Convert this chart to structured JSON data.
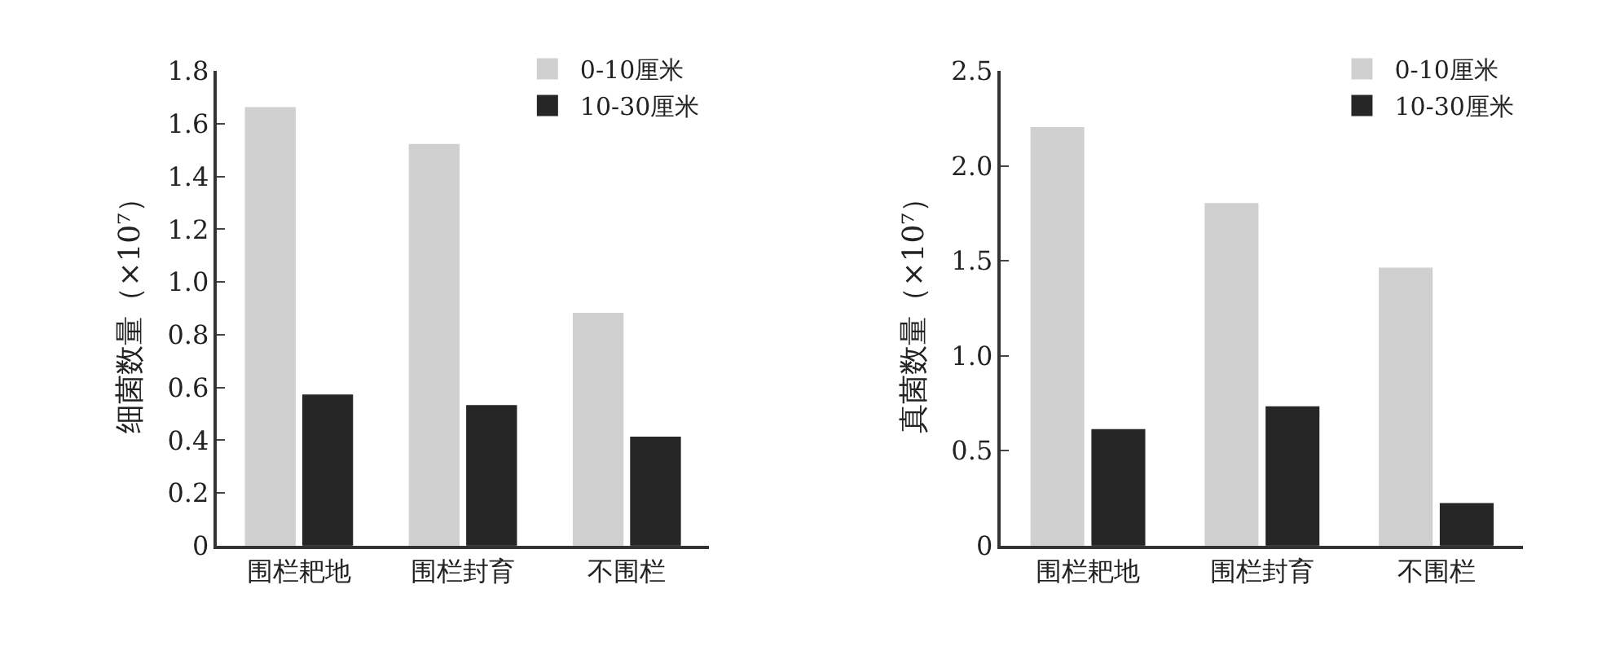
{
  "chart_data": [
    {
      "type": "bar",
      "ylabel": "细菌数量（×10⁷）",
      "categories": [
        "围栏耙地",
        "围栏封育",
        "不围栏"
      ],
      "series": [
        {
          "name": "0-10厘米",
          "color": "#d0d0d0",
          "values": [
            1.66,
            1.52,
            0.88
          ]
        },
        {
          "name": "10-30厘米",
          "color": "#262626",
          "values": [
            0.57,
            0.53,
            0.41
          ]
        }
      ],
      "ylim": [
        0,
        1.8
      ],
      "yticks": [
        0,
        {
          "value": 0.2,
          "label": "0.2"
        },
        {
          "value": 0.4,
          "label": "0.4"
        },
        {
          "value": 0.6,
          "label": "0.6"
        },
        {
          "value": 0.8,
          "label": "0.8"
        },
        {
          "value": 1.0,
          "label": "1.0"
        },
        {
          "value": 1.2,
          "label": "1.2"
        },
        {
          "value": 1.4,
          "label": "1.4"
        },
        {
          "value": 1.6,
          "label": "1.6"
        },
        {
          "value": 1.8,
          "label": "1.8"
        }
      ],
      "grid": false,
      "legend": "top right"
    },
    {
      "type": "bar",
      "ylabel": "真菌数量（×10⁷）",
      "categories": [
        "围栏耙地",
        "围栏封育",
        "不围栏"
      ],
      "series": [
        {
          "name": "0-10厘米",
          "color": "#d0d0d0",
          "values": [
            2.2,
            1.8,
            1.46
          ]
        },
        {
          "name": "10-30厘米",
          "color": "#262626",
          "values": [
            0.61,
            0.73,
            0.22
          ]
        }
      ],
      "ylim": [
        0,
        2.5
      ],
      "yticks": [
        0,
        {
          "value": 0.5,
          "label": "0.5"
        },
        {
          "value": 1.0,
          "label": "1.0"
        },
        {
          "value": 1.5,
          "label": "1.5"
        },
        {
          "value": 2.0,
          "label": "2.0"
        },
        {
          "value": 2.5,
          "label": "2.5"
        }
      ],
      "grid": false,
      "legend": "top right"
    }
  ]
}
